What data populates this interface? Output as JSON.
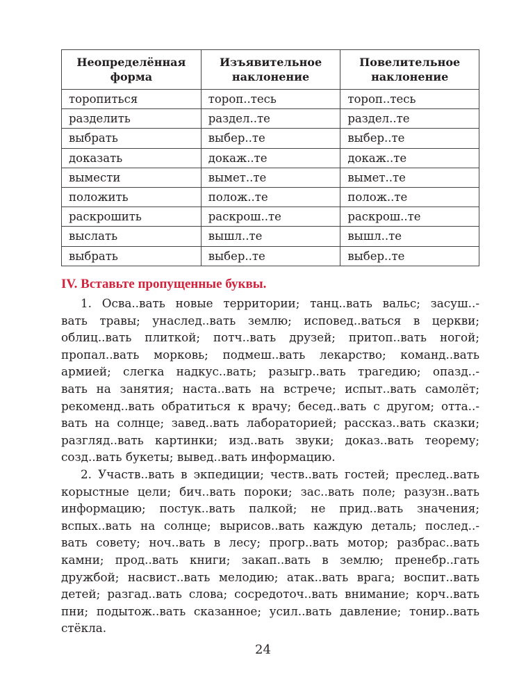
{
  "table": {
    "headers": [
      "Неопределённая форма",
      "Изъявительное наклонение",
      "Повелительное наклонение"
    ],
    "rows": [
      [
        "торопиться",
        "тороп..тесь",
        "тороп..тесь"
      ],
      [
        "разделить",
        "раздел..те",
        "раздел..те"
      ],
      [
        "выбрать",
        "выбер..те",
        "выбер..те"
      ],
      [
        "доказать",
        "докаж..те",
        "докаж..те"
      ],
      [
        "вымести",
        "вымет..те",
        "вымет..те"
      ],
      [
        "положить",
        "полож..те",
        "полож..те"
      ],
      [
        "раскрошить",
        "раскрош..те",
        "раскрош..те"
      ],
      [
        "выслать",
        "вышл..те",
        "вышл..те"
      ],
      [
        "выбрать",
        "выбер..те",
        "выбер..те"
      ]
    ]
  },
  "exercise": {
    "heading": "IV. Вставьте пропущенные буквы.",
    "paragraphs": [
      [
        "1. Осва..вать новые территории; танц..вать вальс; засуш..-",
        "вать травы; унаслед..вать землю; исповед..ваться в церкви;",
        "облиц..вать плиткой; потч..вать друзей; притоп..вать ногой;",
        "пропал..вать морковь; подмеш..вать лекарство; команд..вать",
        "армией; слегка надкус..вать; разыгр..вать трагедию; опазд..-",
        "вать на занятия; наста..вать на встрече; испыт..вать самолёт;",
        "рекоменд..вать обратиться к врачу; бесед..вать с другом; отта..-",
        "вать на солнце; завед..вать лабораторией; рассказ..вать сказки;",
        "разгляд..вать картинки; изд..вать звуки; доказ..вать теорему;",
        "созд..вать букеты; вывед..вать информацию."
      ],
      [
        "2. Участв..вать в экпедиции; честв..вать гостей; преслед..вать",
        "корыстные цели; бич..вать пороки; зас..вать поле; разузн..вать",
        "информацию; постук..вать палкой; не прид..вать значения;",
        "вспых..вать на солнце; вырисов..вать каждую деталь; послед..-",
        "вать совету; ноч..вать в лесу; прогр..вать мотор; разбрас..вать",
        "камни; прод..вать книги; закап..вать в землю; пренебр..гать",
        "дружбой; насвист..вать мелодию; атак..вать врага; воспит..вать",
        "детей; разгад..вать слова; сосредоточ..вать внимание; корч..вать",
        "пни; подытож..вать сказанное; усил..вать давление; тонир..вать",
        "стёкла."
      ]
    ]
  },
  "page_number": "24"
}
